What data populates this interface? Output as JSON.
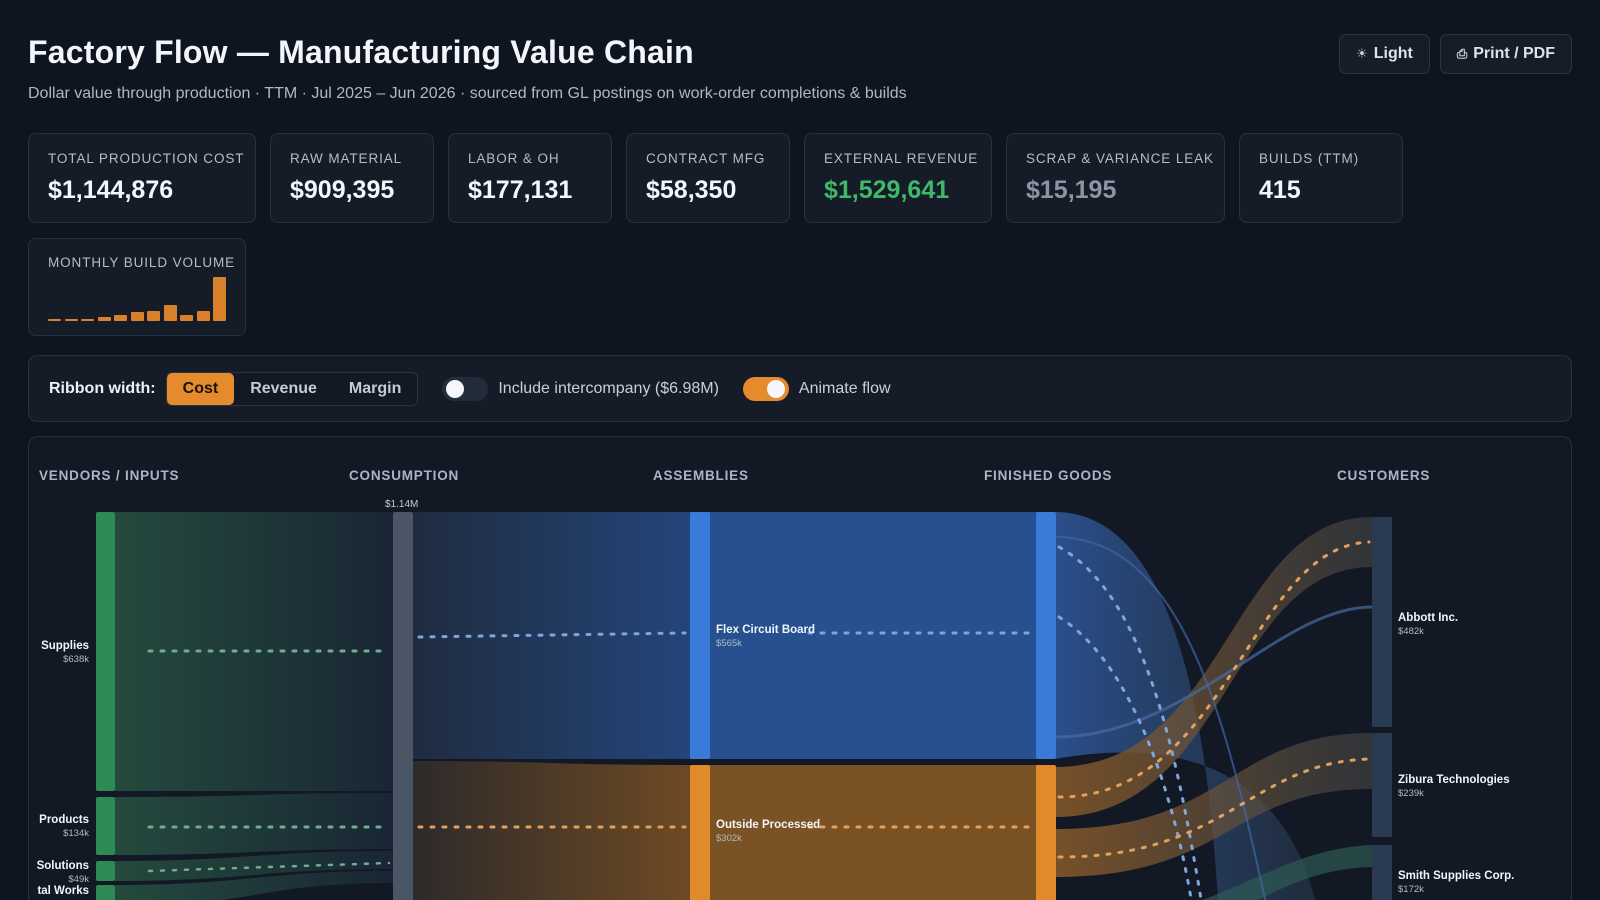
{
  "header": {
    "title": "Factory Flow — Manufacturing Value Chain",
    "subtitle": "Dollar value through production · TTM · Jul 2025 – Jun 2026 · sourced from GL postings on work-order completions & builds",
    "light_label": "Light",
    "print_label": "Print / PDF"
  },
  "kpis": [
    {
      "label": "Total Production Cost",
      "value": "$1,144,876",
      "color": "#f3f6fa"
    },
    {
      "label": "Raw Material",
      "value": "$909,395",
      "color": "#f3f6fa"
    },
    {
      "label": "Labor & OH",
      "value": "$177,131",
      "color": "#f3f6fa"
    },
    {
      "label": "Contract Mfg",
      "value": "$58,350",
      "color": "#f3f6fa"
    },
    {
      "label": "External Revenue",
      "value": "$1,529,641",
      "color": "#3fb86a"
    },
    {
      "label": "Scrap & Variance Leak",
      "value": "$15,195",
      "color": "#8b95a3"
    },
    {
      "label": "Builds (TTM)",
      "value": "415",
      "color": "#f3f6fa"
    }
  ],
  "monthly_build_volume": {
    "label": "Monthly Build Volume",
    "values": [
      3,
      3,
      3,
      6,
      10,
      14,
      16,
      26,
      10,
      16,
      72
    ],
    "color": "#d8812a"
  },
  "controls": {
    "ribbon_label": "Ribbon width:",
    "segments": [
      {
        "label": "Cost",
        "active": true
      },
      {
        "label": "Revenue",
        "active": false
      },
      {
        "label": "Margin",
        "active": false
      }
    ],
    "intercompany_label": "Include intercompany ($6.98M)",
    "intercompany_on": false,
    "animate_label": "Animate flow",
    "animate_on": true,
    "accent": "#e58b2e"
  },
  "flow": {
    "columns": [
      "VENDORS / INPUTS",
      "CONSUMPTION",
      "ASSEMBLIES",
      "FINISHED GOODS",
      "CUSTOMERS"
    ],
    "consumption_total": "$1.14M",
    "vendors": [
      {
        "name": "Supplies",
        "value": "$638k"
      },
      {
        "name": "Products",
        "value": "$134k"
      },
      {
        "name": "Solutions",
        "value": "$49k"
      },
      {
        "name": "tal Works",
        "value": ""
      }
    ],
    "assemblies": [
      {
        "name": "Flex Circuit Board",
        "value": "$565k",
        "color": "#3a74d2"
      },
      {
        "name": "Outside Processed",
        "value": "$302k",
        "color": "#de8a2c"
      }
    ],
    "customers": [
      {
        "name": "Abbott Inc.",
        "value": "$482k"
      },
      {
        "name": "Zibura Technologies",
        "value": "$239k"
      },
      {
        "name": "Smith Supplies Corp.",
        "value": "$172k"
      }
    ]
  }
}
